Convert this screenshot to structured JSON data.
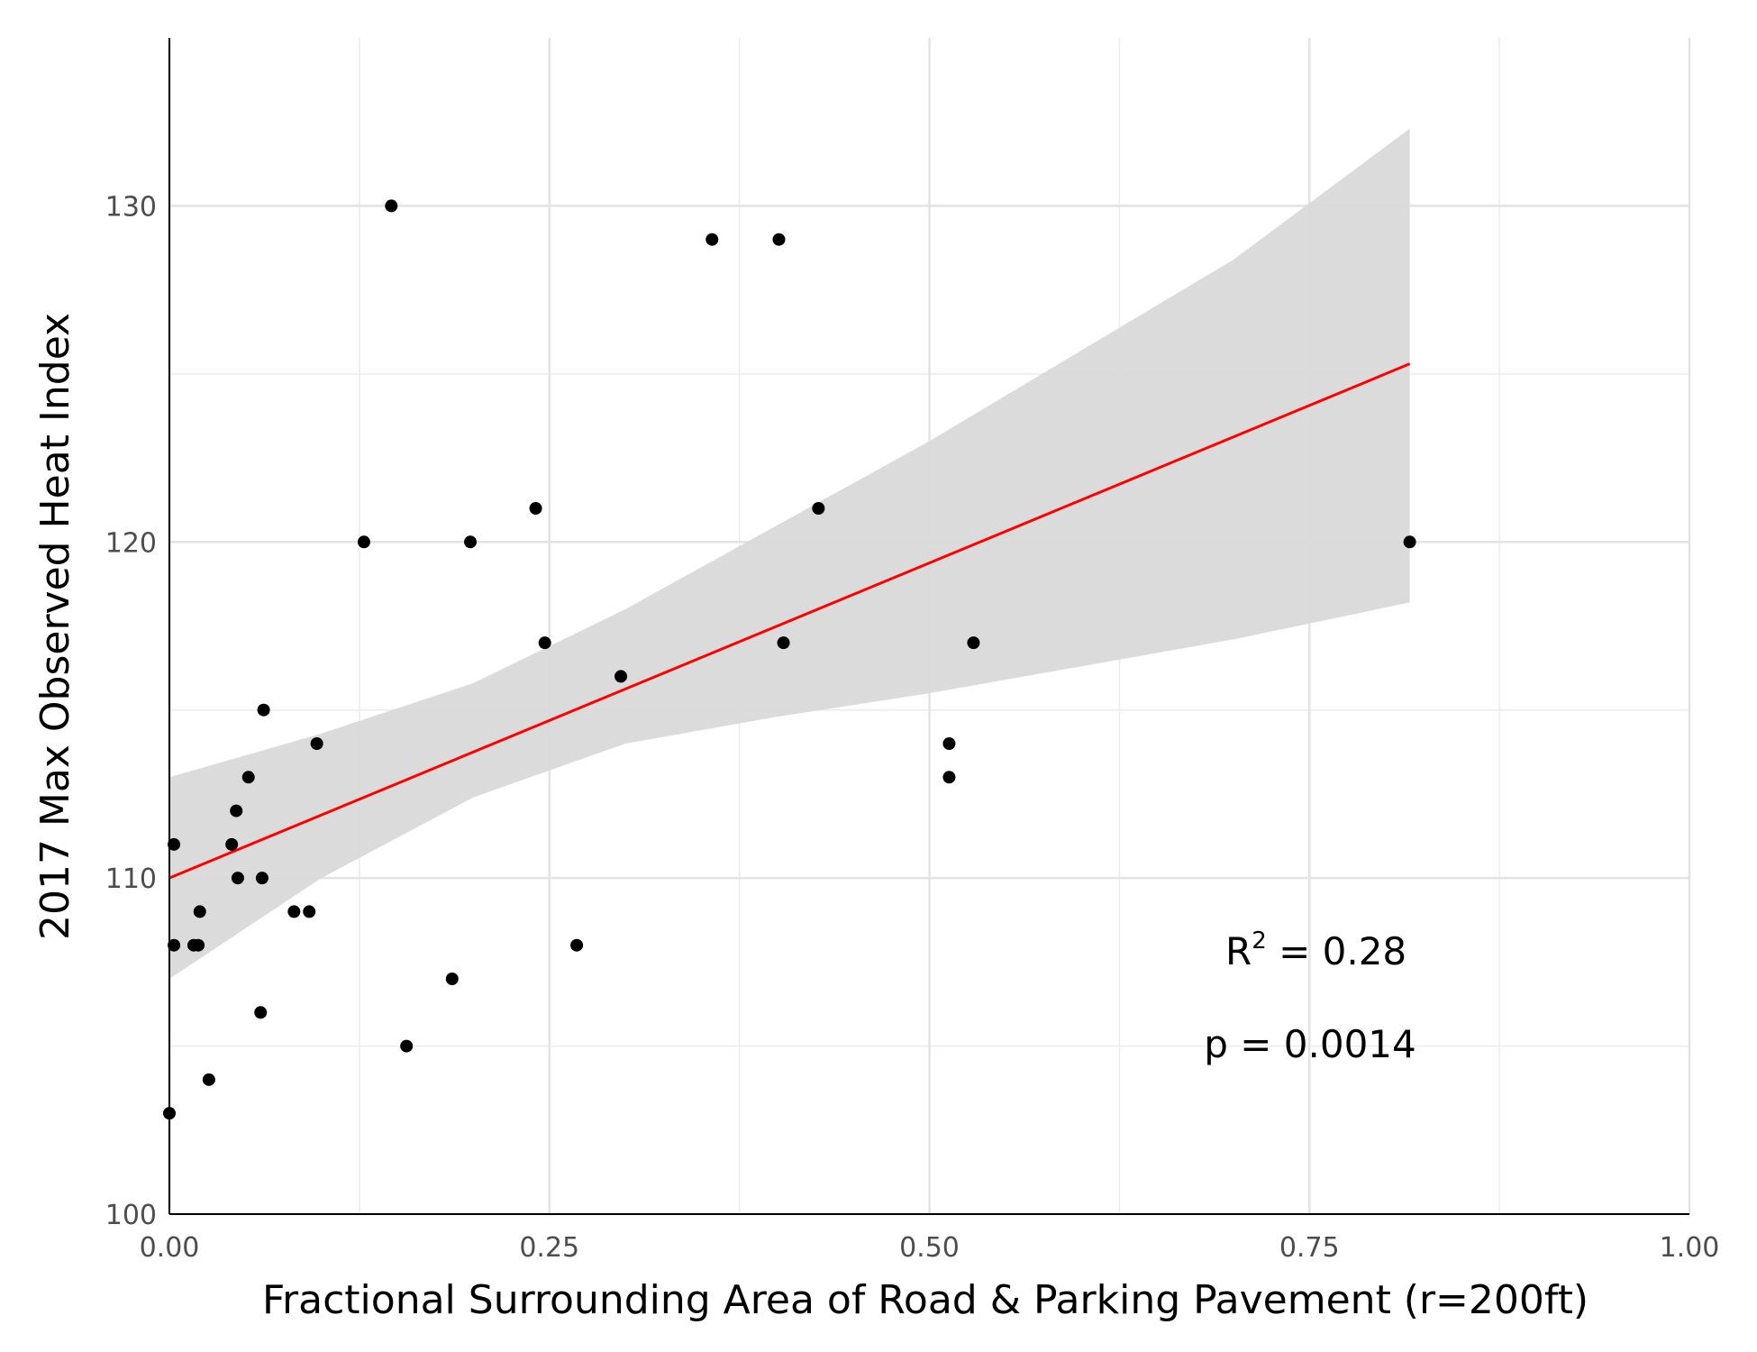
{
  "chart_data": {
    "type": "scatter",
    "xlabel": "Fractional Surrounding Area of Road & Parking Pavement (r=200ft)",
    "ylabel": "2017 Max Observed Heat Index",
    "xlim": [
      0,
      1
    ],
    "ylim": [
      100,
      135
    ],
    "x_ticks": [
      0,
      0.25,
      0.5,
      0.75,
      1
    ],
    "x_tick_labels": [
      "0.00",
      "0.25",
      "0.50",
      "0.75",
      "1.00"
    ],
    "y_ticks": [
      100,
      110,
      120,
      130
    ],
    "y_tick_labels": [
      "100",
      "110",
      "120",
      "130"
    ],
    "grid": true,
    "points": [
      {
        "x": 0.0,
        "y": 103
      },
      {
        "x": 0.003,
        "y": 108
      },
      {
        "x": 0.003,
        "y": 111
      },
      {
        "x": 0.016,
        "y": 108
      },
      {
        "x": 0.019,
        "y": 108
      },
      {
        "x": 0.02,
        "y": 109
      },
      {
        "x": 0.026,
        "y": 104
      },
      {
        "x": 0.041,
        "y": 111
      },
      {
        "x": 0.044,
        "y": 112
      },
      {
        "x": 0.045,
        "y": 110
      },
      {
        "x": 0.052,
        "y": 113
      },
      {
        "x": 0.06,
        "y": 106
      },
      {
        "x": 0.061,
        "y": 110
      },
      {
        "x": 0.062,
        "y": 115
      },
      {
        "x": 0.082,
        "y": 109
      },
      {
        "x": 0.092,
        "y": 109
      },
      {
        "x": 0.097,
        "y": 114
      },
      {
        "x": 0.128,
        "y": 120
      },
      {
        "x": 0.146,
        "y": 130
      },
      {
        "x": 0.156,
        "y": 105
      },
      {
        "x": 0.186,
        "y": 107
      },
      {
        "x": 0.198,
        "y": 120
      },
      {
        "x": 0.241,
        "y": 121
      },
      {
        "x": 0.247,
        "y": 117
      },
      {
        "x": 0.268,
        "y": 108
      },
      {
        "x": 0.297,
        "y": 116
      },
      {
        "x": 0.357,
        "y": 129
      },
      {
        "x": 0.401,
        "y": 129
      },
      {
        "x": 0.404,
        "y": 117
      },
      {
        "x": 0.427,
        "y": 121
      },
      {
        "x": 0.513,
        "y": 114
      },
      {
        "x": 0.513,
        "y": 113
      },
      {
        "x": 0.529,
        "y": 117
      },
      {
        "x": 0.816,
        "y": 120
      }
    ],
    "fit_line": {
      "color": "#ff0000",
      "x": [
        0.0,
        0.816
      ],
      "y": [
        110.0,
        125.3
      ]
    },
    "confidence_band": {
      "color": "#d9d9d9",
      "x": [
        0.0,
        0.1,
        0.2,
        0.3,
        0.4,
        0.5,
        0.6,
        0.7,
        0.816
      ],
      "lower": [
        107.0,
        110.0,
        112.4,
        114.0,
        114.8,
        115.5,
        116.3,
        117.1,
        118.2
      ],
      "upper": [
        113.0,
        114.3,
        115.8,
        118.0,
        120.5,
        123.0,
        125.7,
        128.4,
        132.3
      ]
    },
    "annotations": {
      "r2_prefix": "R",
      "r2_sup": "2",
      "r2_rest": " = 0.28",
      "p_value": "p = 0.0014"
    }
  }
}
